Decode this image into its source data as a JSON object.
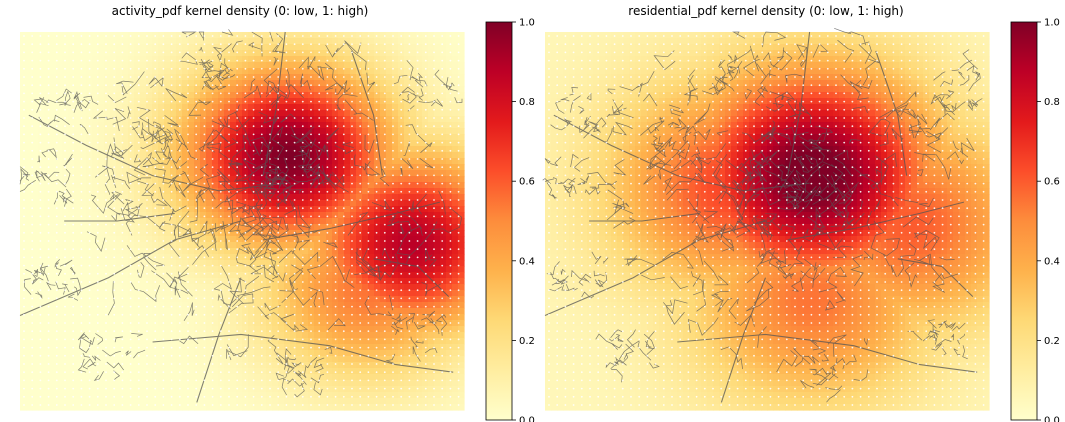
{
  "chart_data": [
    {
      "type": "heatmap",
      "title": "activity_pdf kernel density (0: low, 1: high)",
      "colorbar": {
        "colormap": "YlOrRd",
        "range": [
          0,
          1
        ],
        "ticks": [
          "0.0",
          "0.2",
          "0.4",
          "0.6",
          "0.8",
          "1.0"
        ]
      },
      "overlay": "street network with white grid sample points",
      "density_peaks": [
        {
          "x": 0.6,
          "y": 0.68,
          "value": 1.0
        },
        {
          "x": 0.88,
          "y": 0.45,
          "value": 0.88
        },
        {
          "x": 0.78,
          "y": 0.33,
          "value": 0.55
        }
      ]
    },
    {
      "type": "heatmap",
      "title": "residential_pdf kernel density (0: low, 1: high)",
      "colorbar": {
        "colormap": "YlOrRd",
        "range": [
          0,
          1
        ],
        "ticks": [
          "0.0",
          "0.2",
          "0.4",
          "0.6",
          "0.8",
          "1.0"
        ]
      },
      "overlay": "street network with white grid sample points",
      "density_peaks": [
        {
          "x": 0.6,
          "y": 0.63,
          "value": 1.0
        },
        {
          "x": 0.42,
          "y": 0.6,
          "value": 0.6
        },
        {
          "x": 0.82,
          "y": 0.5,
          "value": 0.55
        },
        {
          "x": 0.6,
          "y": 0.3,
          "value": 0.5
        }
      ]
    }
  ]
}
